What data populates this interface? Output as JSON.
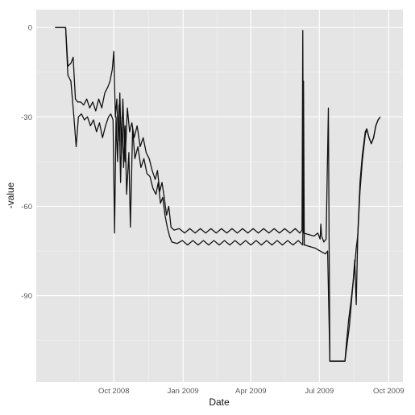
{
  "chart_data": {
    "type": "line",
    "xlabel": "Date",
    "ylabel": "-value",
    "xlim": [
      "2008-06-20",
      "2009-10-20"
    ],
    "ylim": [
      -119,
      6
    ],
    "x_ticks": [
      {
        "date": "2008-10-01",
        "label": "Oct 2008"
      },
      {
        "date": "2009-01-01",
        "label": "Jan 2009"
      },
      {
        "date": "2009-04-01",
        "label": "Apr 2009"
      },
      {
        "date": "2009-07-01",
        "label": "Jul 2009"
      },
      {
        "date": "2009-10-01",
        "label": "Oct 2009"
      }
    ],
    "y_ticks": [
      {
        "value": 0,
        "label": "0"
      },
      {
        "value": -30,
        "label": "-30"
      },
      {
        "value": -60,
        "label": "-60"
      },
      {
        "value": -90,
        "label": "-90"
      }
    ],
    "grid": true,
    "legend": "none",
    "series": [
      {
        "points": [
          [
            "2008-07-15",
            0
          ],
          [
            "2008-07-22",
            0
          ],
          [
            "2008-07-29",
            0
          ],
          [
            "2008-08-01",
            -13
          ],
          [
            "2008-08-05",
            -12
          ],
          [
            "2008-08-08",
            -10
          ],
          [
            "2008-08-11",
            -24
          ],
          [
            "2008-08-14",
            -25
          ],
          [
            "2008-08-18",
            -25
          ],
          [
            "2008-08-22",
            -26
          ],
          [
            "2008-08-26",
            -24
          ],
          [
            "2008-08-30",
            -27
          ],
          [
            "2008-09-03",
            -25
          ],
          [
            "2008-09-07",
            -28
          ],
          [
            "2008-09-11",
            -24
          ],
          [
            "2008-09-15",
            -27
          ],
          [
            "2008-09-19",
            -22
          ],
          [
            "2008-09-23",
            -20
          ],
          [
            "2008-09-26",
            -18
          ],
          [
            "2008-09-29",
            -14
          ],
          [
            "2008-10-01",
            -8
          ],
          [
            "2008-10-03",
            -30
          ],
          [
            "2008-10-05",
            -24
          ],
          [
            "2008-10-07",
            -38
          ],
          [
            "2008-10-09",
            -22
          ],
          [
            "2008-10-11",
            -42
          ],
          [
            "2008-10-13",
            -24
          ],
          [
            "2008-10-16",
            -45
          ],
          [
            "2008-10-19",
            -27
          ],
          [
            "2008-10-22",
            -35
          ],
          [
            "2008-10-25",
            -32
          ],
          [
            "2008-10-28",
            -37
          ],
          [
            "2008-11-01",
            -33
          ],
          [
            "2008-11-05",
            -40
          ],
          [
            "2008-11-09",
            -37
          ],
          [
            "2008-11-13",
            -42
          ],
          [
            "2008-11-17",
            -44
          ],
          [
            "2008-11-21",
            -48
          ],
          [
            "2008-11-25",
            -51
          ],
          [
            "2008-11-28",
            -48
          ],
          [
            "2008-12-01",
            -55
          ],
          [
            "2008-12-04",
            -52
          ],
          [
            "2008-12-07",
            -57
          ],
          [
            "2008-12-10",
            -63
          ],
          [
            "2008-12-13",
            -60
          ],
          [
            "2008-12-16",
            -67
          ],
          [
            "2008-12-20",
            -68
          ],
          [
            "2008-12-27",
            -67.5
          ],
          [
            "2009-01-03",
            -69
          ],
          [
            "2009-01-10",
            -67.5
          ],
          [
            "2009-01-17",
            -69
          ],
          [
            "2009-01-24",
            -67.5
          ],
          [
            "2009-01-31",
            -69
          ],
          [
            "2009-02-07",
            -67.5
          ],
          [
            "2009-02-14",
            -69
          ],
          [
            "2009-02-21",
            -67.5
          ],
          [
            "2009-02-28",
            -69
          ],
          [
            "2009-03-07",
            -67.5
          ],
          [
            "2009-03-14",
            -69
          ],
          [
            "2009-03-21",
            -67.5
          ],
          [
            "2009-03-28",
            -69
          ],
          [
            "2009-04-04",
            -67.5
          ],
          [
            "2009-04-11",
            -69
          ],
          [
            "2009-04-18",
            -67.5
          ],
          [
            "2009-04-25",
            -69
          ],
          [
            "2009-05-02",
            -67.5
          ],
          [
            "2009-05-09",
            -69
          ],
          [
            "2009-05-16",
            -67.5
          ],
          [
            "2009-05-23",
            -69
          ],
          [
            "2009-05-30",
            -67.5
          ],
          [
            "2009-06-05",
            -69
          ],
          [
            "2009-06-08",
            -68
          ],
          [
            "2009-06-09",
            -1
          ],
          [
            "2009-06-10",
            -69
          ],
          [
            "2009-06-17",
            -69.5
          ],
          [
            "2009-06-24",
            -70
          ],
          [
            "2009-06-29",
            -69
          ],
          [
            "2009-07-02",
            -71
          ],
          [
            "2009-07-03",
            -66
          ],
          [
            "2009-07-04",
            -70
          ],
          [
            "2009-07-07",
            -72
          ],
          [
            "2009-07-10",
            -71
          ],
          [
            "2009-07-13",
            -27
          ],
          [
            "2009-07-14",
            -73
          ],
          [
            "2009-07-15",
            -112
          ],
          [
            "2009-07-25",
            -112
          ],
          [
            "2009-08-04",
            -112
          ],
          [
            "2009-08-06",
            -108
          ],
          [
            "2009-08-10",
            -100
          ],
          [
            "2009-08-14",
            -88
          ],
          [
            "2009-08-17",
            -80
          ],
          [
            "2009-08-19",
            -74
          ],
          [
            "2009-08-21",
            -70
          ],
          [
            "2009-08-24",
            -55
          ],
          [
            "2009-08-27",
            -45
          ],
          [
            "2009-08-31",
            -36
          ],
          [
            "2009-09-02",
            -34
          ],
          [
            "2009-09-05",
            -37
          ],
          [
            "2009-09-08",
            -39
          ],
          [
            "2009-09-11",
            -37
          ],
          [
            "2009-09-14",
            -33
          ],
          [
            "2009-09-17",
            -31
          ],
          [
            "2009-09-20",
            -30
          ]
        ]
      },
      {
        "points": [
          [
            "2008-07-15",
            0
          ],
          [
            "2008-07-22",
            0
          ],
          [
            "2008-07-29",
            0
          ],
          [
            "2008-08-01",
            -16
          ],
          [
            "2008-08-05",
            -18
          ],
          [
            "2008-08-09",
            -30
          ],
          [
            "2008-08-12",
            -40
          ],
          [
            "2008-08-15",
            -30
          ],
          [
            "2008-08-19",
            -29
          ],
          [
            "2008-08-23",
            -31
          ],
          [
            "2008-08-27",
            -30
          ],
          [
            "2008-08-31",
            -33
          ],
          [
            "2008-09-04",
            -31
          ],
          [
            "2008-09-08",
            -35
          ],
          [
            "2008-09-12",
            -32
          ],
          [
            "2008-09-16",
            -37
          ],
          [
            "2008-09-20",
            -33
          ],
          [
            "2008-09-24",
            -30
          ],
          [
            "2008-09-27",
            -29
          ],
          [
            "2008-09-30",
            -31
          ],
          [
            "2008-10-02",
            -69
          ],
          [
            "2008-10-04",
            -30
          ],
          [
            "2008-10-06",
            -45
          ],
          [
            "2008-10-08",
            -26
          ],
          [
            "2008-10-10",
            -52
          ],
          [
            "2008-10-12",
            -30
          ],
          [
            "2008-10-14",
            -47
          ],
          [
            "2008-10-16",
            -33
          ],
          [
            "2008-10-18",
            -56
          ],
          [
            "2008-10-21",
            -42
          ],
          [
            "2008-10-23",
            -67
          ],
          [
            "2008-10-26",
            -34
          ],
          [
            "2008-10-29",
            -44
          ],
          [
            "2008-11-02",
            -40
          ],
          [
            "2008-11-06",
            -47
          ],
          [
            "2008-11-10",
            -44
          ],
          [
            "2008-11-14",
            -49
          ],
          [
            "2008-11-18",
            -50
          ],
          [
            "2008-11-22",
            -54
          ],
          [
            "2008-11-26",
            -56
          ],
          [
            "2008-11-29",
            -52
          ],
          [
            "2008-12-02",
            -59
          ],
          [
            "2008-12-05",
            -57
          ],
          [
            "2008-12-08",
            -63
          ],
          [
            "2008-12-11",
            -67
          ],
          [
            "2008-12-14",
            -70
          ],
          [
            "2008-12-17",
            -72
          ],
          [
            "2008-12-24",
            -72.5
          ],
          [
            "2008-12-31",
            -71.5
          ],
          [
            "2009-01-07",
            -73
          ],
          [
            "2009-01-14",
            -71.5
          ],
          [
            "2009-01-21",
            -73
          ],
          [
            "2009-01-28",
            -71.5
          ],
          [
            "2009-02-04",
            -73
          ],
          [
            "2009-02-11",
            -71.5
          ],
          [
            "2009-02-18",
            -73
          ],
          [
            "2009-02-25",
            -71.5
          ],
          [
            "2009-03-04",
            -73
          ],
          [
            "2009-03-11",
            -71.5
          ],
          [
            "2009-03-18",
            -73
          ],
          [
            "2009-03-25",
            -71.5
          ],
          [
            "2009-04-01",
            -73
          ],
          [
            "2009-04-08",
            -71.5
          ],
          [
            "2009-04-15",
            -73
          ],
          [
            "2009-04-22",
            -71.5
          ],
          [
            "2009-04-29",
            -73
          ],
          [
            "2009-05-06",
            -71.5
          ],
          [
            "2009-05-13",
            -73
          ],
          [
            "2009-05-20",
            -71.5
          ],
          [
            "2009-05-27",
            -73
          ],
          [
            "2009-06-03",
            -71.5
          ],
          [
            "2009-06-09",
            -73
          ],
          [
            "2009-06-10",
            -18
          ],
          [
            "2009-06-11",
            -73
          ],
          [
            "2009-06-18",
            -73.5
          ],
          [
            "2009-06-25",
            -74
          ],
          [
            "2009-07-02",
            -75
          ],
          [
            "2009-07-09",
            -76
          ],
          [
            "2009-07-12",
            -75
          ],
          [
            "2009-07-15",
            -112
          ],
          [
            "2009-07-25",
            -112
          ],
          [
            "2009-08-04",
            -112
          ],
          [
            "2009-08-06",
            -106
          ],
          [
            "2009-08-09",
            -98
          ],
          [
            "2009-08-12",
            -92
          ],
          [
            "2009-08-15",
            -85
          ],
          [
            "2009-08-17",
            -78
          ],
          [
            "2009-08-19",
            -93
          ],
          [
            "2009-08-21",
            -70
          ],
          [
            "2009-08-24",
            -52
          ],
          [
            "2009-08-27",
            -43
          ],
          [
            "2009-08-31",
            -35
          ],
          [
            "2009-09-02",
            -34
          ],
          [
            "2009-09-05",
            -37
          ],
          [
            "2009-09-08",
            -39
          ],
          [
            "2009-09-11",
            -37
          ],
          [
            "2009-09-14",
            -33
          ],
          [
            "2009-09-17",
            -31
          ],
          [
            "2009-09-20",
            -30
          ]
        ]
      }
    ]
  }
}
